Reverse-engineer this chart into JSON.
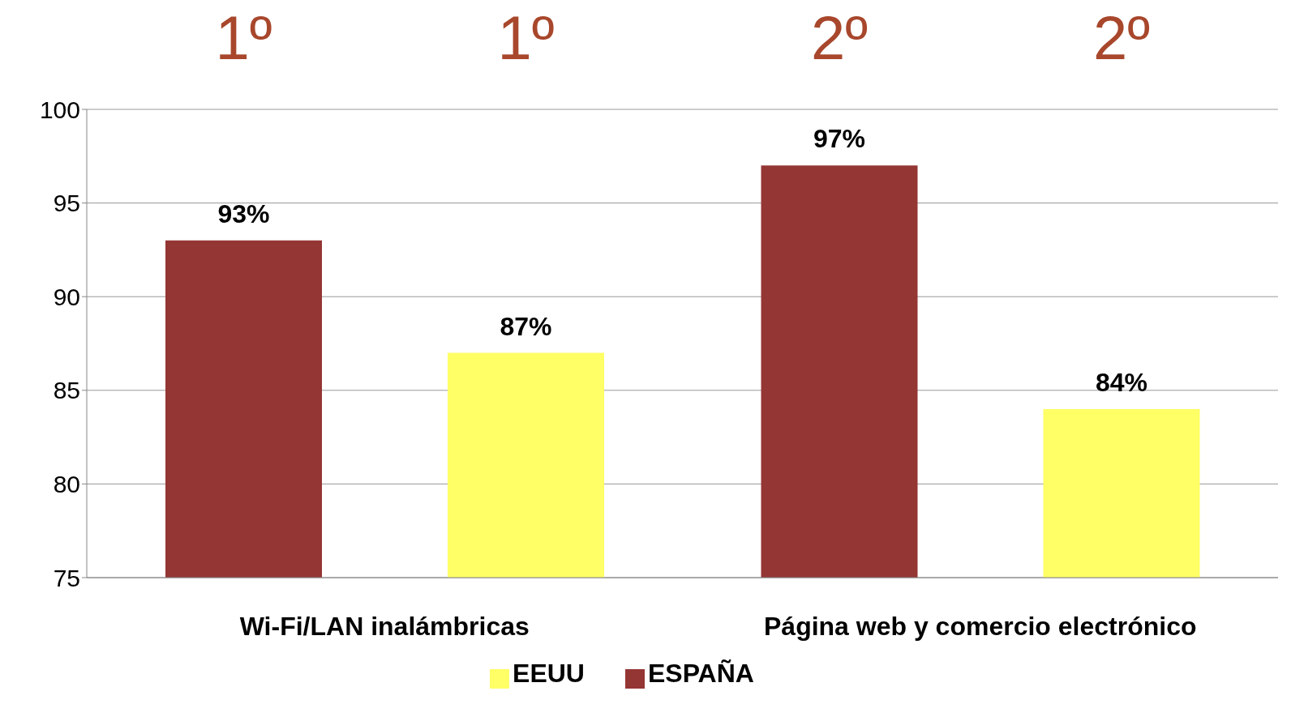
{
  "chart_data": {
    "type": "bar",
    "categories": [
      "Wi-Fi/LAN inalámbricas",
      "Página web y comercio electrónico"
    ],
    "series": [
      {
        "name": "ESPAÑA",
        "color": "#943634",
        "values": [
          93,
          97
        ],
        "value_labels": [
          "93%",
          "97%"
        ]
      },
      {
        "name": "EEUU",
        "color": "#ffff66",
        "values": [
          87,
          84
        ],
        "value_labels": [
          "87%",
          "84%"
        ]
      }
    ],
    "ylim": [
      75,
      100
    ],
    "yticks": [
      75,
      80,
      85,
      90,
      95,
      100
    ],
    "grid": "y",
    "legend": "bottom",
    "annotations": [
      "1º",
      "1º",
      "2º",
      "2º"
    ]
  }
}
